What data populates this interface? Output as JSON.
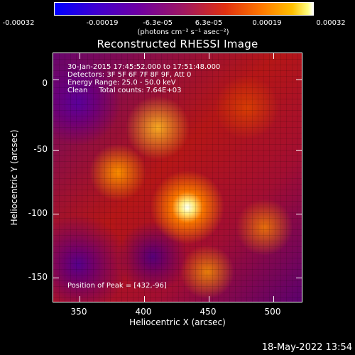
{
  "colorbar": {
    "ticks": [
      "-0.00032",
      "-0.00019",
      "-6.3e-05",
      "6.3e-05",
      "0.00019",
      "0.00032"
    ],
    "units": "(photons cm⁻² s⁻¹ asec⁻²)",
    "range": [
      -0.00032,
      0.00032
    ]
  },
  "title": "Reconstructed RHESSI Image",
  "info": {
    "line1": "30-Jan-2015 17:45:52.000 to 17:51:48.000",
    "line2": "Detectors: 3F 5F 6F 7F 8F 9F, Att 0",
    "line3": "Energy Range: 25.0 - 50.0 keV",
    "line4": "Clean     Total counts: 7.64E+03"
  },
  "peak": "Position of Peak = [432,-96]",
  "axes": {
    "xlabel": "Heliocentric X (arcsec)",
    "ylabel": "Heliocentric Y (arcsec)",
    "x_ticks": [
      "350",
      "400",
      "450",
      "500"
    ],
    "y_ticks": [
      "0",
      "-50",
      "-100",
      "-150"
    ],
    "xlim": [
      330,
      523
    ],
    "ylim": [
      -172,
      21
    ]
  },
  "timestamp": "18-May-2022 13:54",
  "colors": {
    "background": "#000000",
    "text": "#ffffff"
  }
}
